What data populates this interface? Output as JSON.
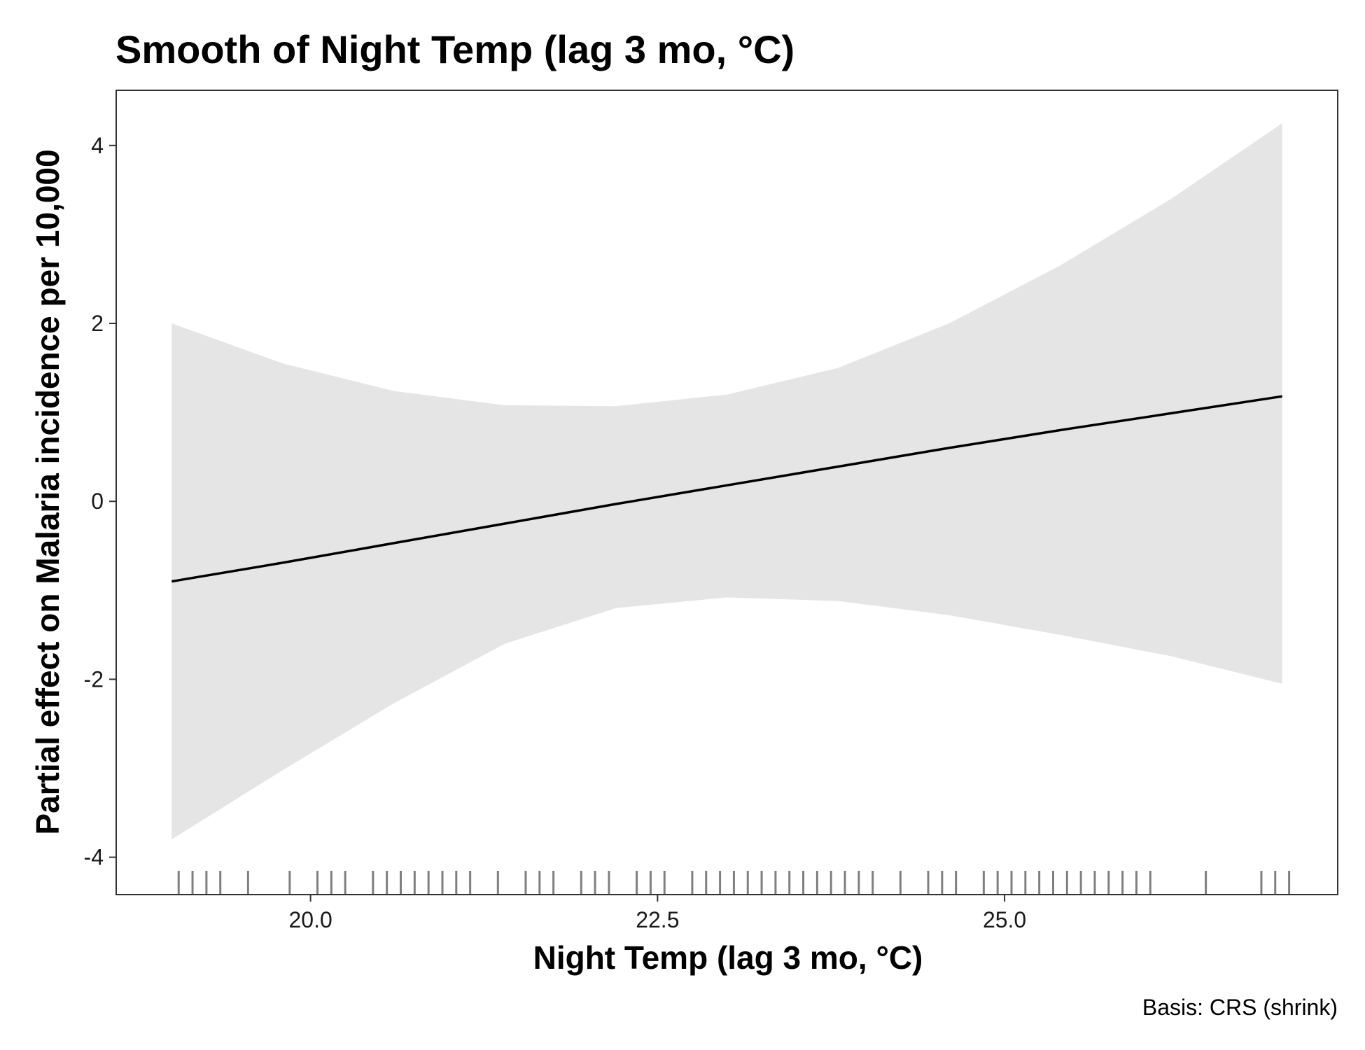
{
  "chart_data": {
    "type": "line",
    "title": "Smooth of Night Temp (lag 3 mo, °C)",
    "xlabel": "Night Temp (lag 3 mo, °C)",
    "ylabel": "Partial effect on Malaria incidence per 10,000",
    "caption": "Basis: CRS (shrink)",
    "xlim": [
      18.6,
      27.4
    ],
    "ylim": [
      -4.42,
      4.62
    ],
    "x_ticks": [
      20.0,
      22.5,
      25.0
    ],
    "x_tick_labels": [
      "20.0",
      "22.5",
      "25.0"
    ],
    "y_ticks": [
      -4,
      -2,
      0,
      2,
      4
    ],
    "y_tick_labels": [
      "-4",
      "-2",
      "0",
      "2",
      "4"
    ],
    "grid": false,
    "series": [
      {
        "kind": "smooth",
        "x": [
          19.0,
          19.8,
          20.6,
          21.4,
          22.2,
          23.0,
          23.8,
          24.6,
          25.4,
          26.2,
          27.0
        ],
        "y": [
          -0.9,
          -0.69,
          -0.47,
          -0.25,
          -0.03,
          0.18,
          0.39,
          0.6,
          0.8,
          0.99,
          1.18
        ],
        "lower": [
          -3.8,
          -3.02,
          -2.27,
          -1.6,
          -1.2,
          -1.08,
          -1.12,
          -1.28,
          -1.5,
          -1.74,
          -2.05
        ],
        "upper": [
          2.0,
          1.55,
          1.24,
          1.08,
          1.07,
          1.2,
          1.5,
          2.0,
          2.65,
          3.4,
          4.25
        ]
      }
    ],
    "rug": [
      19.05,
      19.15,
      19.25,
      19.35,
      19.55,
      19.85,
      20.05,
      20.15,
      20.25,
      20.45,
      20.55,
      20.65,
      20.75,
      20.85,
      20.95,
      21.05,
      21.15,
      21.35,
      21.55,
      21.65,
      21.75,
      21.95,
      22.05,
      22.15,
      22.35,
      22.45,
      22.55,
      22.75,
      22.85,
      22.95,
      23.05,
      23.15,
      23.25,
      23.35,
      23.45,
      23.55,
      23.65,
      23.75,
      23.85,
      23.95,
      24.05,
      24.25,
      24.45,
      24.55,
      24.65,
      24.85,
      24.95,
      25.05,
      25.15,
      25.25,
      25.35,
      25.45,
      25.55,
      25.65,
      25.75,
      25.85,
      25.95,
      26.05,
      26.45,
      26.85,
      26.95,
      27.05
    ],
    "colors": {
      "band": "#e5e5e5",
      "line": "#000000",
      "rug": "#7f7f7f",
      "panel_border": "#333333"
    }
  }
}
